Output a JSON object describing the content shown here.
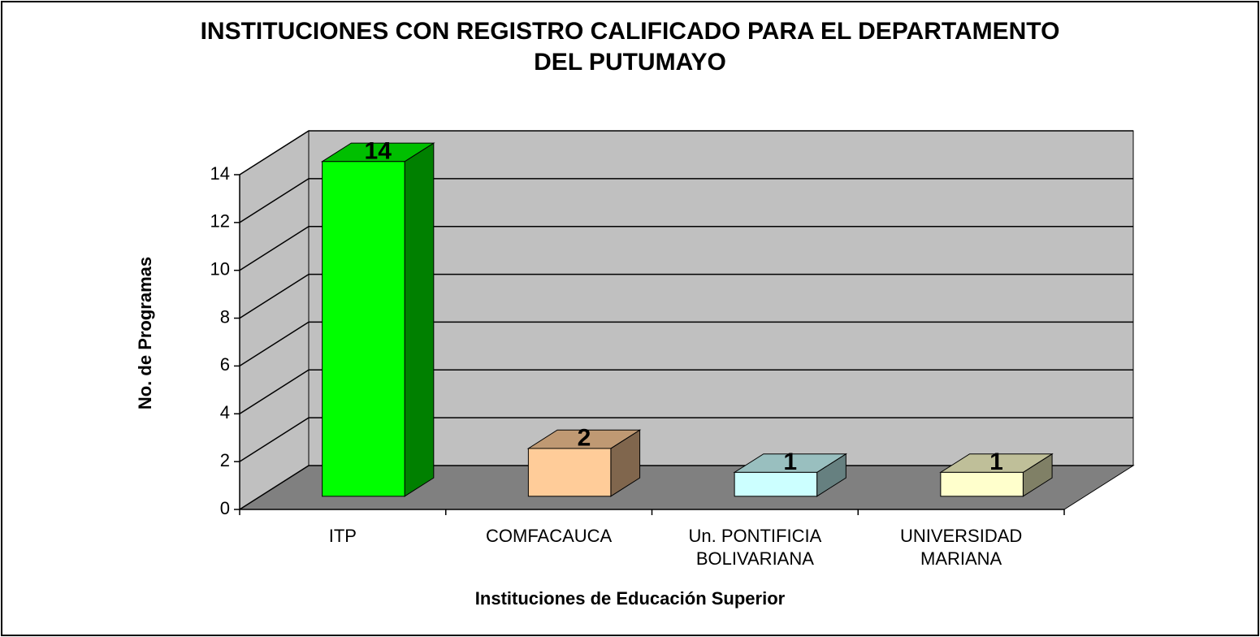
{
  "chart_data": {
    "type": "bar3d",
    "title": "INSTITUCIONES CON REGISTRO CALIFICADO PARA EL DEPARTAMENTO DEL PUTUMAYO",
    "x_label": "Instituciones de Educación Superior",
    "y_label": "No. de Programas",
    "categories": [
      "ITP",
      "COMFACAUCA",
      "Un. PONTIFICIA BOLIVARIANA",
      "UNIVERSIDAD MARIANA"
    ],
    "values": [
      14,
      2,
      1,
      1
    ],
    "colors": [
      "#00ff00",
      "#ffcc99",
      "#ccffff",
      "#ffffcc"
    ],
    "ylim": [
      0,
      14
    ],
    "yticks": [
      0,
      2,
      4,
      6,
      8,
      10,
      12,
      14
    ],
    "grid": true
  }
}
